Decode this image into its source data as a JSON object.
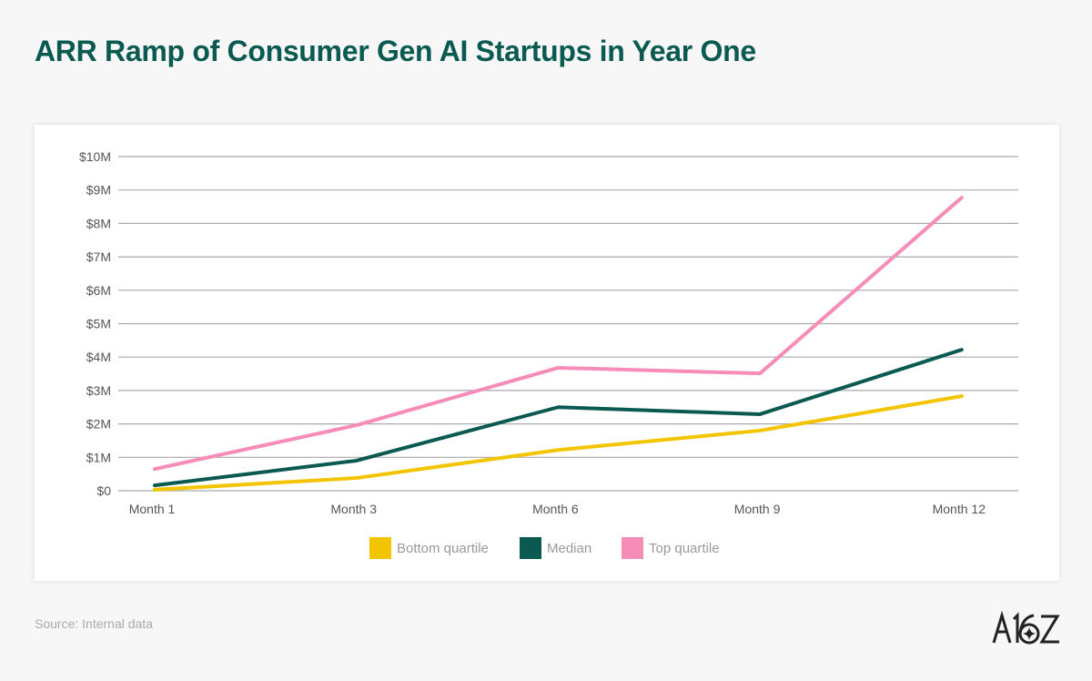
{
  "title": "ARR Ramp of Consumer Gen AI Startups in Year One",
  "source": "Source: Internal data",
  "logo_text": "A16Z",
  "chart_data": {
    "type": "line",
    "title": "ARR Ramp of Consumer Gen AI Startups in Year One",
    "categories": [
      "Month 1",
      "Month 3",
      "Month 6",
      "Month 9",
      "Month 12"
    ],
    "y_ticks": [
      "$0",
      "$1M",
      "$2M",
      "$3M",
      "$4M",
      "$5M",
      "$6M",
      "$7M",
      "$8M",
      "$9M",
      "$10M"
    ],
    "ylim": [
      0,
      10
    ],
    "y_unit": "$M",
    "grid": true,
    "legend_position": "bottom",
    "series": [
      {
        "name": "Bottom quartile",
        "color": "#f2c500",
        "values": [
          0.03,
          0.38,
          1.22,
          1.8,
          2.83
        ]
      },
      {
        "name": "Median",
        "color": "#0b5a52",
        "values": [
          0.16,
          0.9,
          2.5,
          2.29,
          4.22
        ]
      },
      {
        "name": "Top quartile",
        "color": "#f68cb8",
        "values": [
          0.65,
          1.96,
          3.68,
          3.51,
          8.77
        ]
      }
    ]
  }
}
